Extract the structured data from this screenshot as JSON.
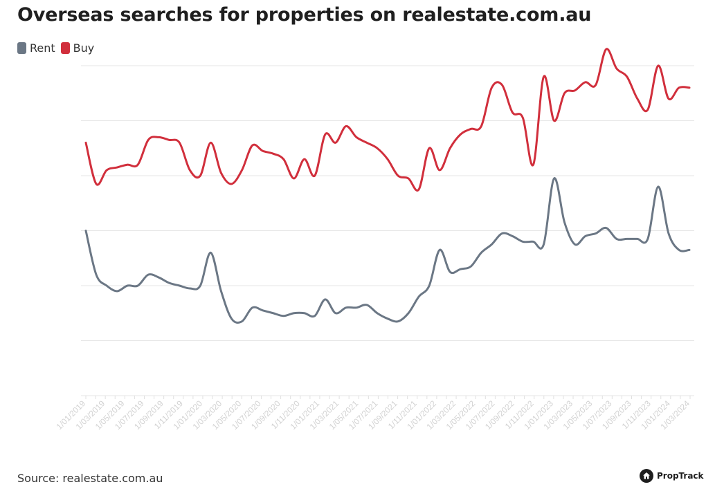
{
  "chart_data": {
    "type": "line",
    "title": "Overseas searches for properties on realestate.com.au",
    "xlabel": "",
    "ylabel": "",
    "y_axis_labels_shown": false,
    "ylim": [
      0,
      6
    ],
    "legend_position": "top-left",
    "grid": true,
    "tick_labels": [
      "1/01/2019",
      "1/03/2019",
      "1/05/2019",
      "1/07/2019",
      "1/09/2019",
      "1/11/2019",
      "1/01/2020",
      "1/03/2020",
      "1/05/2020",
      "1/07/2020",
      "1/09/2020",
      "1/11/2020",
      "1/01/2021",
      "1/03/2021",
      "1/05/2021",
      "1/07/2021",
      "1/09/2021",
      "1/11/2021",
      "1/01/2022",
      "1/03/2022",
      "1/05/2022",
      "1/07/2022",
      "1/09/2022",
      "1/11/2022",
      "1/01/2023",
      "1/03/2023",
      "1/05/2023",
      "1/07/2023",
      "1/09/2023",
      "1/11/2023",
      "1/01/2024",
      "1/03/2024"
    ],
    "series": [
      {
        "name": "Rent",
        "color": "#6b7785",
        "points": [
          [
            0,
            3.0
          ],
          [
            1,
            2.2
          ],
          [
            2,
            2.0
          ],
          [
            3,
            1.9
          ],
          [
            4,
            2.0
          ],
          [
            5,
            2.0
          ],
          [
            6,
            2.2
          ],
          [
            7,
            2.15
          ],
          [
            8,
            2.05
          ],
          [
            9,
            2.0
          ],
          [
            10,
            1.95
          ],
          [
            11,
            2.0
          ],
          [
            12,
            2.6
          ],
          [
            13,
            1.9
          ],
          [
            14,
            1.4
          ],
          [
            15,
            1.35
          ],
          [
            16,
            1.6
          ],
          [
            17,
            1.55
          ],
          [
            18,
            1.5
          ],
          [
            19,
            1.45
          ],
          [
            20,
            1.5
          ],
          [
            21,
            1.5
          ],
          [
            22,
            1.45
          ],
          [
            23,
            1.75
          ],
          [
            24,
            1.5
          ],
          [
            25,
            1.6
          ],
          [
            26,
            1.6
          ],
          [
            27,
            1.65
          ],
          [
            28,
            1.5
          ],
          [
            29,
            1.4
          ],
          [
            30,
            1.35
          ],
          [
            31,
            1.5
          ],
          [
            32,
            1.8
          ],
          [
            33,
            2.0
          ],
          [
            34,
            2.65
          ],
          [
            35,
            2.25
          ],
          [
            36,
            2.3
          ],
          [
            37,
            2.35
          ],
          [
            38,
            2.6
          ],
          [
            39,
            2.75
          ],
          [
            40,
            2.95
          ],
          [
            41,
            2.9
          ],
          [
            42,
            2.8
          ],
          [
            43,
            2.8
          ],
          [
            44,
            2.75
          ],
          [
            45,
            3.95
          ],
          [
            46,
            3.15
          ],
          [
            47,
            2.75
          ],
          [
            48,
            2.9
          ],
          [
            49,
            2.95
          ],
          [
            50,
            3.05
          ],
          [
            51,
            2.85
          ],
          [
            52,
            2.85
          ],
          [
            53,
            2.85
          ],
          [
            54,
            2.85
          ],
          [
            55,
            3.8
          ],
          [
            56,
            2.95
          ],
          [
            57,
            2.65
          ],
          [
            58,
            2.65
          ]
        ]
      },
      {
        "name": "Buy",
        "color": "#d12f3c",
        "points": [
          [
            0,
            4.6
          ],
          [
            1,
            3.85
          ],
          [
            2,
            4.1
          ],
          [
            3,
            4.15
          ],
          [
            4,
            4.2
          ],
          [
            5,
            4.2
          ],
          [
            6,
            4.65
          ],
          [
            7,
            4.7
          ],
          [
            8,
            4.65
          ],
          [
            9,
            4.6
          ],
          [
            10,
            4.1
          ],
          [
            11,
            4.0
          ],
          [
            12,
            4.6
          ],
          [
            13,
            4.05
          ],
          [
            14,
            3.85
          ],
          [
            15,
            4.1
          ],
          [
            16,
            4.55
          ],
          [
            17,
            4.45
          ],
          [
            18,
            4.4
          ],
          [
            19,
            4.3
          ],
          [
            20,
            3.95
          ],
          [
            21,
            4.3
          ],
          [
            22,
            4.0
          ],
          [
            23,
            4.75
          ],
          [
            24,
            4.6
          ],
          [
            25,
            4.9
          ],
          [
            26,
            4.7
          ],
          [
            27,
            4.6
          ],
          [
            28,
            4.5
          ],
          [
            29,
            4.3
          ],
          [
            30,
            4.0
          ],
          [
            31,
            3.95
          ],
          [
            32,
            3.75
          ],
          [
            33,
            4.5
          ],
          [
            34,
            4.1
          ],
          [
            35,
            4.5
          ],
          [
            36,
            4.75
          ],
          [
            37,
            4.85
          ],
          [
            38,
            4.9
          ],
          [
            39,
            5.6
          ],
          [
            40,
            5.65
          ],
          [
            41,
            5.15
          ],
          [
            42,
            5.05
          ],
          [
            43,
            4.2
          ],
          [
            44,
            5.8
          ],
          [
            45,
            5.0
          ],
          [
            46,
            5.5
          ],
          [
            47,
            5.55
          ],
          [
            48,
            5.7
          ],
          [
            49,
            5.65
          ],
          [
            50,
            6.3
          ],
          [
            51,
            5.95
          ],
          [
            52,
            5.8
          ],
          [
            53,
            5.4
          ],
          [
            54,
            5.2
          ],
          [
            55,
            6.0
          ],
          [
            56,
            5.4
          ],
          [
            57,
            5.6
          ],
          [
            58,
            5.6
          ]
        ]
      }
    ],
    "source_label": "Source: realestate.com.au",
    "brand_label": "PropTrack"
  }
}
